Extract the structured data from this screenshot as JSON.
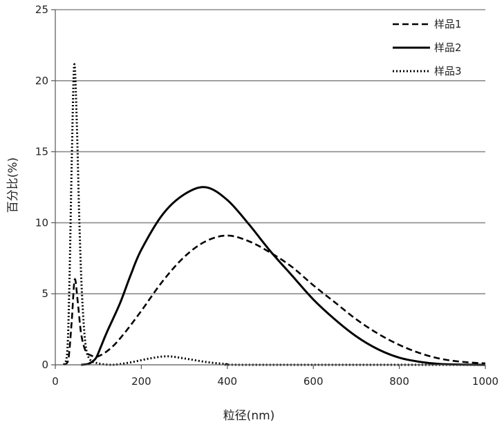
{
  "chart_data": {
    "type": "line",
    "xlabel": "粒径(nm)",
    "ylabel": "百分比(%)",
    "xlim": [
      0,
      1000
    ],
    "ylim": [
      0,
      25
    ],
    "x_ticks": [
      "0",
      "200",
      "400",
      "600",
      "800",
      "1000"
    ],
    "y_ticks": [
      "0",
      "5",
      "10",
      "15",
      "20",
      "25"
    ],
    "grid": "horizontal",
    "legend_position": "top-right",
    "series": [
      {
        "name": "样品1",
        "style": "dashed",
        "color": "#000000",
        "points": [
          [
            20,
            0
          ],
          [
            30,
            0.3
          ],
          [
            38,
            3
          ],
          [
            45,
            6.0
          ],
          [
            52,
            4.5
          ],
          [
            60,
            2.2
          ],
          [
            70,
            1.0
          ],
          [
            80,
            0.7
          ],
          [
            100,
            0.6
          ],
          [
            130,
            1.2
          ],
          [
            160,
            2.2
          ],
          [
            200,
            3.8
          ],
          [
            250,
            5.9
          ],
          [
            300,
            7.6
          ],
          [
            350,
            8.7
          ],
          [
            400,
            9.1
          ],
          [
            450,
            8.7
          ],
          [
            500,
            7.9
          ],
          [
            550,
            6.9
          ],
          [
            600,
            5.6
          ],
          [
            650,
            4.4
          ],
          [
            700,
            3.2
          ],
          [
            750,
            2.2
          ],
          [
            800,
            1.4
          ],
          [
            850,
            0.8
          ],
          [
            900,
            0.4
          ],
          [
            950,
            0.2
          ],
          [
            1000,
            0.1
          ]
        ]
      },
      {
        "name": "样品2",
        "style": "solid",
        "color": "#000000",
        "points": [
          [
            60,
            0
          ],
          [
            75,
            0.05
          ],
          [
            85,
            0.2
          ],
          [
            95,
            0.5
          ],
          [
            105,
            1.2
          ],
          [
            120,
            2.3
          ],
          [
            150,
            4.3
          ],
          [
            175,
            6.3
          ],
          [
            200,
            8.1
          ],
          [
            250,
            10.6
          ],
          [
            300,
            12.0
          ],
          [
            350,
            12.5
          ],
          [
            400,
            11.6
          ],
          [
            450,
            9.9
          ],
          [
            500,
            8.0
          ],
          [
            550,
            6.3
          ],
          [
            600,
            4.6
          ],
          [
            650,
            3.2
          ],
          [
            700,
            2.0
          ],
          [
            750,
            1.1
          ],
          [
            800,
            0.5
          ],
          [
            850,
            0.2
          ],
          [
            900,
            0.05
          ],
          [
            1000,
            0
          ]
        ]
      },
      {
        "name": "样品3",
        "style": "dotted",
        "color": "#000000",
        "points": [
          [
            20,
            0
          ],
          [
            28,
            1.0
          ],
          [
            33,
            6
          ],
          [
            38,
            14
          ],
          [
            44,
            21.1
          ],
          [
            50,
            17
          ],
          [
            56,
            10
          ],
          [
            62,
            5
          ],
          [
            70,
            1.5
          ],
          [
            80,
            0.4
          ],
          [
            100,
            0.1
          ],
          [
            130,
            0
          ],
          [
            150,
            0.05
          ],
          [
            180,
            0.2
          ],
          [
            220,
            0.45
          ],
          [
            260,
            0.6
          ],
          [
            300,
            0.45
          ],
          [
            350,
            0.2
          ],
          [
            400,
            0.05
          ],
          [
            450,
            0
          ],
          [
            1000,
            0
          ]
        ]
      }
    ]
  }
}
